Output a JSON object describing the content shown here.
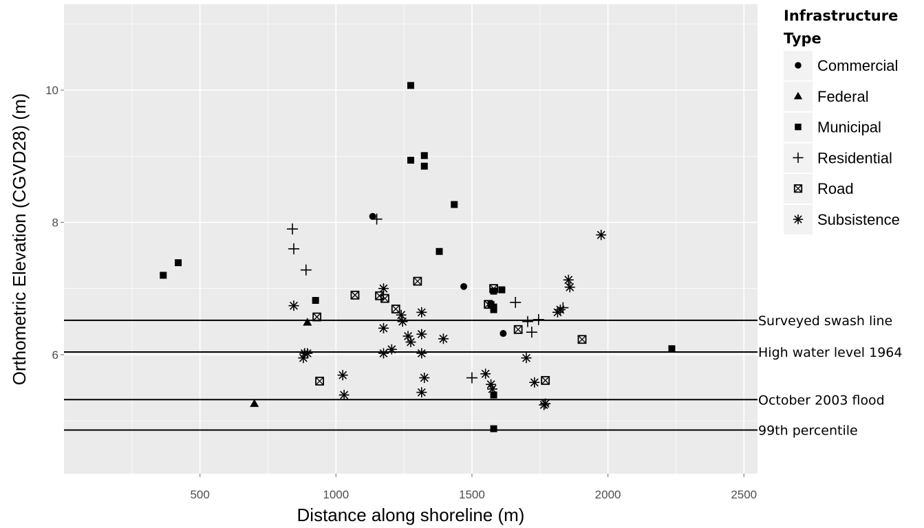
{
  "chart_data": {
    "type": "scatter",
    "title": "",
    "xlabel": "Distance along shoreline (m)",
    "ylabel": "Orthometric Elevation (CGVD28) (m)",
    "xlim": [
      0,
      2550
    ],
    "ylim": [
      4.2,
      11.3
    ],
    "x_ticks": [
      500,
      1000,
      1500,
      2000,
      2500
    ],
    "x_tick_labels": [
      "500",
      "1000",
      "1500",
      "2000",
      "2500"
    ],
    "y_ticks": [
      6,
      8,
      10
    ],
    "y_tick_labels": [
      "6",
      "8",
      "10"
    ],
    "grid": true,
    "background": "#ebebeb",
    "legend": {
      "title": "Infrastructure Type",
      "position": "right",
      "entries": [
        {
          "name": "Commercial",
          "shape": "circle"
        },
        {
          "name": "Federal",
          "shape": "triangle"
        },
        {
          "name": "Municipal",
          "shape": "square"
        },
        {
          "name": "Residential",
          "shape": "plus"
        },
        {
          "name": "Road",
          "shape": "boxed-x"
        },
        {
          "name": "Subsistence",
          "shape": "asterisk"
        }
      ]
    },
    "reference_lines": [
      {
        "label": "Surveyed swash line",
        "y": 6.52
      },
      {
        "label": "High water level 1964",
        "y": 6.04
      },
      {
        "label": "October 2003 flood",
        "y": 5.32
      },
      {
        "label": "99th percentile",
        "y": 4.86
      }
    ],
    "series": [
      {
        "name": "Commercial",
        "points": [
          [
            1135,
            8.09
          ],
          [
            1470,
            7.03
          ],
          [
            1615,
            6.32
          ]
        ]
      },
      {
        "name": "Federal",
        "points": [
          [
            700,
            5.26
          ],
          [
            895,
            6.49
          ]
        ]
      },
      {
        "name": "Municipal",
        "points": [
          [
            365,
            7.2
          ],
          [
            420,
            7.39
          ],
          [
            925,
            6.82
          ],
          [
            1275,
            10.07
          ],
          [
            1275,
            8.94
          ],
          [
            1325,
            9.01
          ],
          [
            1325,
            8.85
          ],
          [
            1380,
            7.56
          ],
          [
            1435,
            8.27
          ],
          [
            1570,
            6.76
          ],
          [
            1580,
            6.96
          ],
          [
            1580,
            6.72
          ],
          [
            1580,
            6.68
          ],
          [
            1610,
            6.98
          ],
          [
            1580,
            5.39
          ],
          [
            1580,
            4.88
          ],
          [
            2235,
            6.09
          ]
        ]
      },
      {
        "name": "Residential",
        "points": [
          [
            840,
            7.9
          ],
          [
            845,
            7.6
          ],
          [
            890,
            7.28
          ],
          [
            1150,
            8.05
          ],
          [
            1500,
            5.65
          ],
          [
            1660,
            6.79
          ],
          [
            1705,
            6.5
          ],
          [
            1720,
            6.34
          ],
          [
            1745,
            6.53
          ],
          [
            1835,
            6.71
          ]
        ]
      },
      {
        "name": "Road",
        "points": [
          [
            930,
            6.57
          ],
          [
            940,
            5.6
          ],
          [
            1070,
            6.9
          ],
          [
            1160,
            6.89
          ],
          [
            1180,
            6.85
          ],
          [
            1220,
            6.69
          ],
          [
            1300,
            7.11
          ],
          [
            1560,
            6.76
          ],
          [
            1580,
            7.0
          ],
          [
            1670,
            6.38
          ],
          [
            1770,
            5.61
          ],
          [
            1905,
            6.23
          ]
        ]
      },
      {
        "name": "Subsistence",
        "points": [
          [
            845,
            6.74
          ],
          [
            880,
            5.95
          ],
          [
            885,
            6.02
          ],
          [
            895,
            6.02
          ],
          [
            1025,
            5.69
          ],
          [
            1030,
            5.39
          ],
          [
            1175,
            7.0
          ],
          [
            1175,
            6.4
          ],
          [
            1175,
            6.02
          ],
          [
            1205,
            6.08
          ],
          [
            1240,
            6.6
          ],
          [
            1245,
            6.5
          ],
          [
            1265,
            6.28
          ],
          [
            1275,
            6.19
          ],
          [
            1315,
            6.64
          ],
          [
            1315,
            6.31
          ],
          [
            1315,
            6.02
          ],
          [
            1315,
            5.43
          ],
          [
            1325,
            5.65
          ],
          [
            1395,
            6.24
          ],
          [
            1550,
            5.71
          ],
          [
            1570,
            5.55
          ],
          [
            1575,
            5.48
          ],
          [
            1700,
            5.95
          ],
          [
            1730,
            5.58
          ],
          [
            1765,
            5.24
          ],
          [
            1770,
            5.26
          ],
          [
            1815,
            6.64
          ],
          [
            1825,
            6.68
          ],
          [
            1855,
            7.13
          ],
          [
            1860,
            7.02
          ],
          [
            1975,
            7.81
          ]
        ]
      }
    ]
  }
}
